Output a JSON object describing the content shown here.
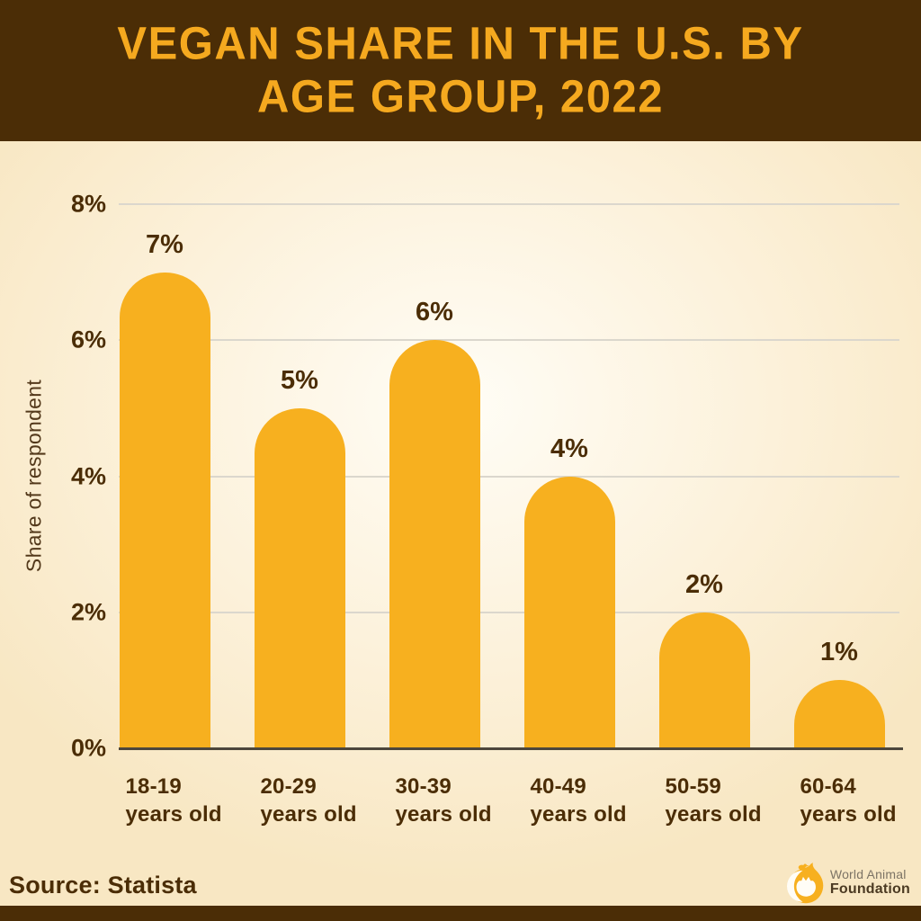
{
  "header": {
    "title_line1": "VEGAN SHARE IN THE U.S. BY",
    "title_line2": "AGE GROUP, 2022"
  },
  "chart_data": {
    "type": "bar",
    "title": "VEGAN SHARE IN THE U.S. BY AGE GROUP, 2022",
    "categories": [
      "18-19 years old",
      "20-29 years old",
      "30-39 years old",
      "40-49 years old",
      "50-59 years old",
      "60-64 years old"
    ],
    "values": [
      7,
      5,
      6,
      4,
      2,
      1
    ],
    "value_labels": [
      "7%",
      "5%",
      "6%",
      "4%",
      "2%",
      "1%"
    ],
    "xlabel": "",
    "ylabel": "Share of respondent",
    "ylim": [
      0,
      8
    ],
    "yticks": [
      {
        "value": 8,
        "label": "8%"
      },
      {
        "value": 6,
        "label": "6%"
      },
      {
        "value": 4,
        "label": "4%"
      },
      {
        "value": 2,
        "label": "2%"
      },
      {
        "value": 0,
        "label": "0%"
      }
    ],
    "grid": true,
    "legend": false
  },
  "footer": {
    "source": "Source: Statista",
    "logo": {
      "line1": "World Animal",
      "line2": "Foundation",
      "icon": "world-animal-foundation-flame-icon"
    }
  },
  "colors": {
    "header_bg": "#4B2D06",
    "title_text": "#F5A91F",
    "bar": "#F7B01F",
    "text_dark": "#4B2D06",
    "ylabel_text": "#53391B",
    "grid": "#DBD7CD",
    "axis": "#4C463C",
    "bg_center": "#FFFDF6",
    "bg_mid": "#FCF1DA",
    "bg_edge": "#F8E7C3",
    "logo_gray": "#7C7365",
    "logo_dark": "#4B3A22"
  }
}
